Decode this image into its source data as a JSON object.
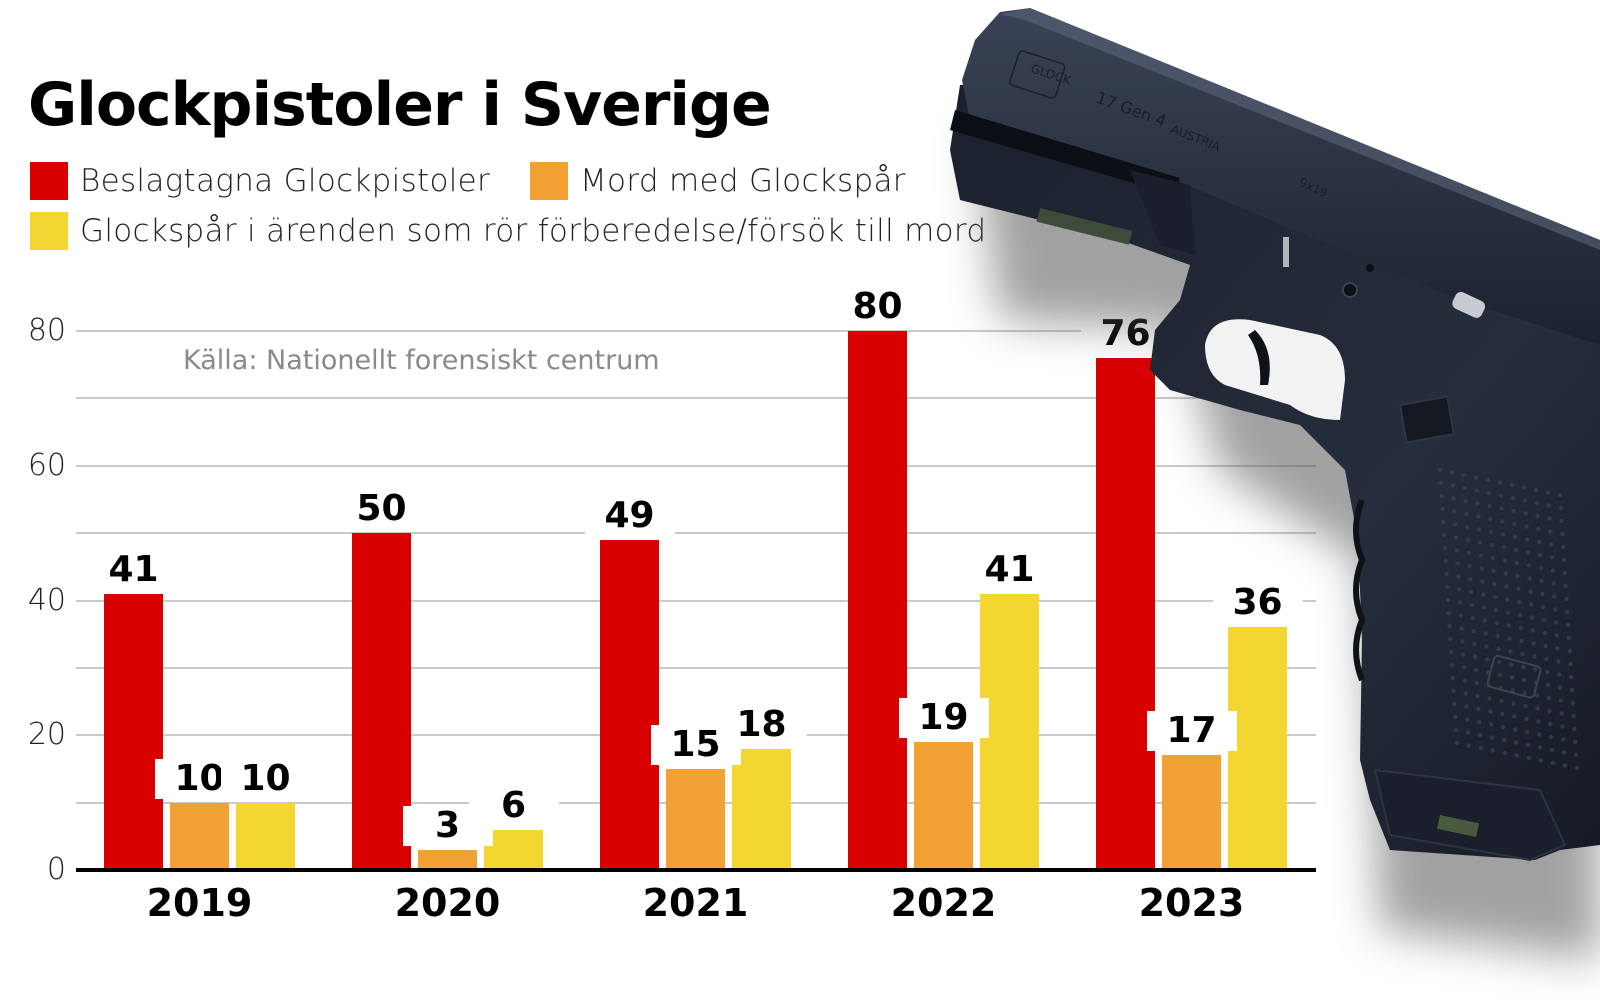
{
  "title": "Glockpistoler i Sverige",
  "source": "Källa: Nationellt forensiskt centrum",
  "legend": [
    {
      "label": "Beslagtagna Glockpistoler",
      "color": "#d90000"
    },
    {
      "label": "Mord med Glockspår",
      "color": "#f2a234"
    },
    {
      "label": "Glockspår i ärenden som rör förberedelse/försök till mord",
      "color": "#f3d62f"
    }
  ],
  "y_ticks": [
    "0",
    "20",
    "40",
    "60",
    "80"
  ],
  "photo": {
    "description": "Glock pistol",
    "slide_markings": [
      "GLOCK",
      "17 Gen 4",
      "AUSTRIA",
      "9x19"
    ]
  },
  "chart_data": {
    "type": "bar",
    "title": "Glockpistoler i Sverige",
    "subtitle": "Källa: Nationellt forensiskt centrum",
    "categories": [
      "2019",
      "2020",
      "2021",
      "2022",
      "2023"
    ],
    "series": [
      {
        "name": "Beslagtagna Glockpistoler",
        "color": "#d90000",
        "values": [
          41,
          50,
          49,
          80,
          76
        ]
      },
      {
        "name": "Mord med Glockspår",
        "color": "#f2a234",
        "values": [
          10,
          3,
          15,
          19,
          17
        ]
      },
      {
        "name": "Glockspår i ärenden som rör förberedelse/försök till mord",
        "color": "#f3d62f",
        "values": [
          10,
          6,
          18,
          41,
          36
        ]
      }
    ],
    "xlabel": "",
    "ylabel": "",
    "ylim": [
      0,
      80
    ],
    "y_ticks": [
      0,
      20,
      40,
      60,
      80
    ],
    "grid": true,
    "grid_step": 10,
    "data_labels": true,
    "legend_position": "top-left"
  }
}
